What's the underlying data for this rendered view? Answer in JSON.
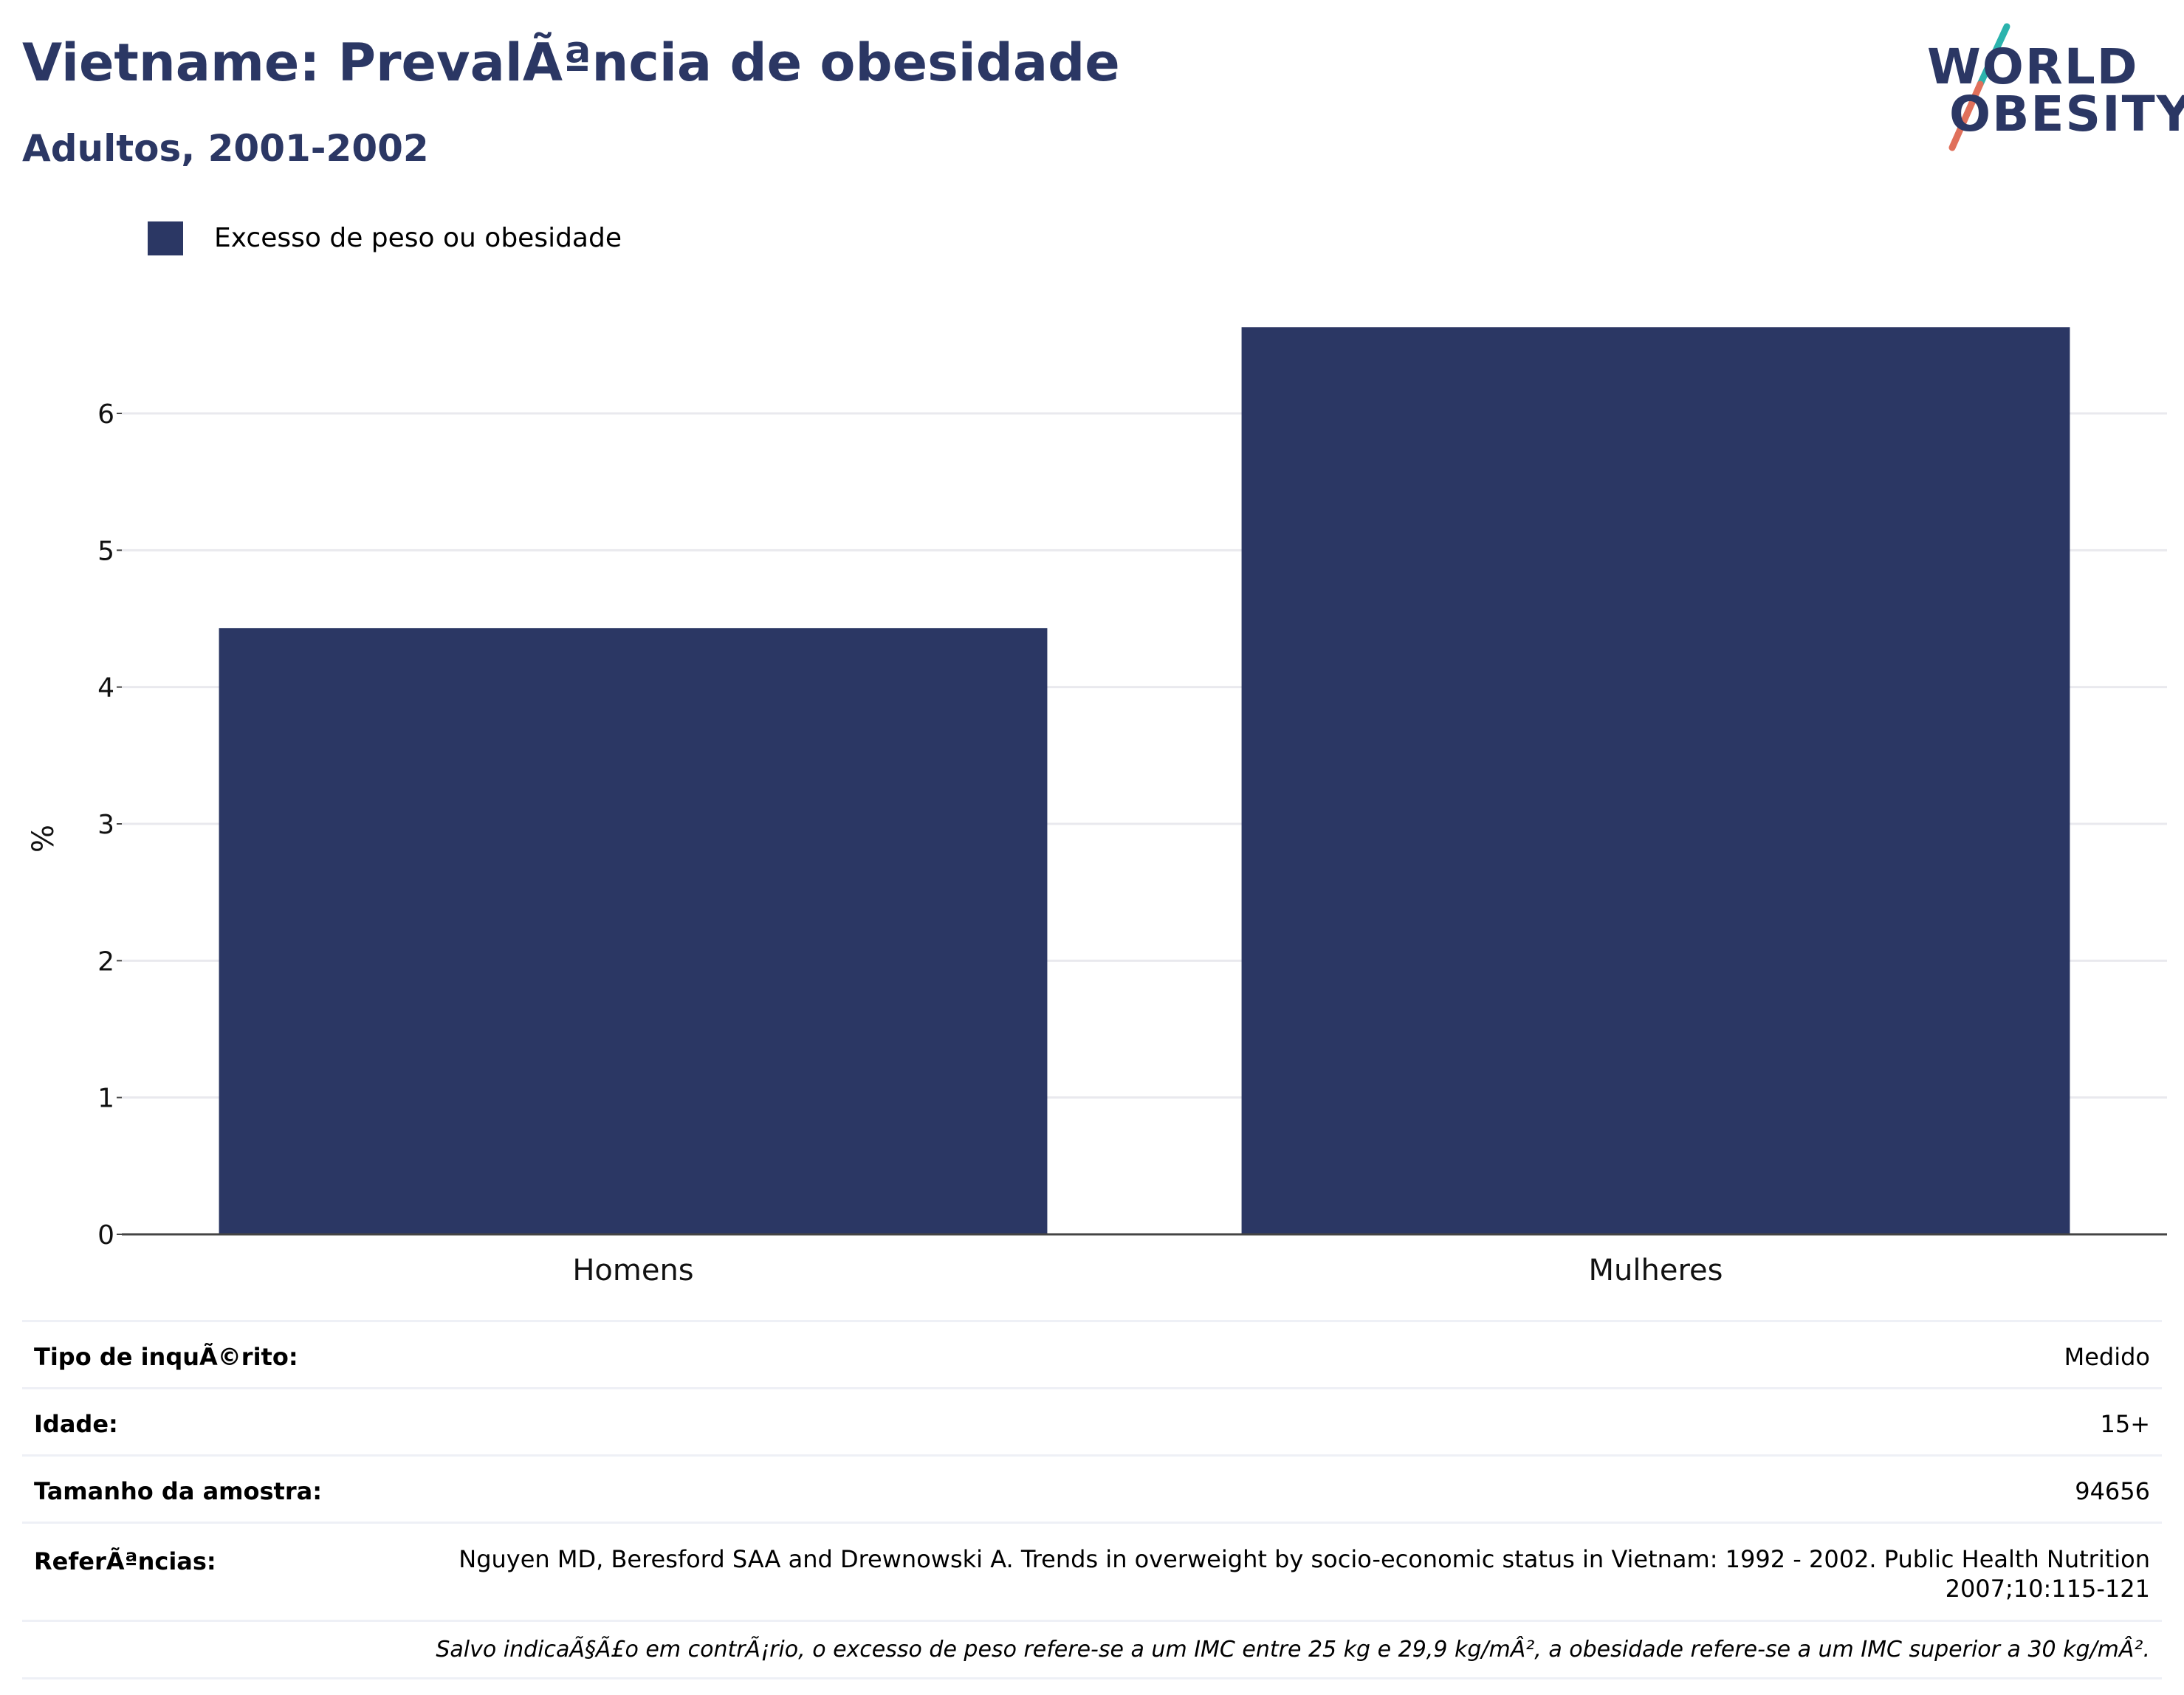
{
  "header": {
    "title": "Vietname: PrevalÃªncia de obesidade",
    "subtitle": "Adultos, 2001-2002"
  },
  "logo": {
    "line1": "WORLD",
    "line2": "OBESITY",
    "accent_colors": [
      "#2bb3ad",
      "#e0705b"
    ]
  },
  "chart_data": {
    "type": "bar",
    "categories": [
      "Homens",
      "Mulheres"
    ],
    "series": [
      {
        "name": "Excesso de peso ou obesidade",
        "values": [
          4.43,
          6.63
        ],
        "color": "#2b3764"
      }
    ],
    "xlabel": "",
    "ylabel": "%",
    "ylim": [
      0,
      7
    ],
    "yticks": [
      0,
      1,
      2,
      3,
      4,
      5,
      6
    ],
    "grid": true,
    "legend_position": "top-left"
  },
  "info": {
    "rows": [
      {
        "label": "Tipo de inquÃ©rito:",
        "value": "Medido"
      },
      {
        "label": "Idade:",
        "value": "15+"
      },
      {
        "label": "Tamanho da amostra:",
        "value": "94656"
      },
      {
        "label": "ReferÃªncias:",
        "value": "Nguyen MD, Beresford SAA and Drewnowski A. Trends in overweight by socio-economic status in Vietnam: 1992 - 2002. Public Health Nutrition 2007;10:115-121"
      }
    ],
    "footnote": "Salvo indicaÃ§Ã£o em contrÃ¡rio, o excesso de peso refere-se a um IMC entre 25 kg e 29,9 kg/mÂ², a obesidade refere-se a um IMC superior a 30 kg/mÂ²."
  }
}
